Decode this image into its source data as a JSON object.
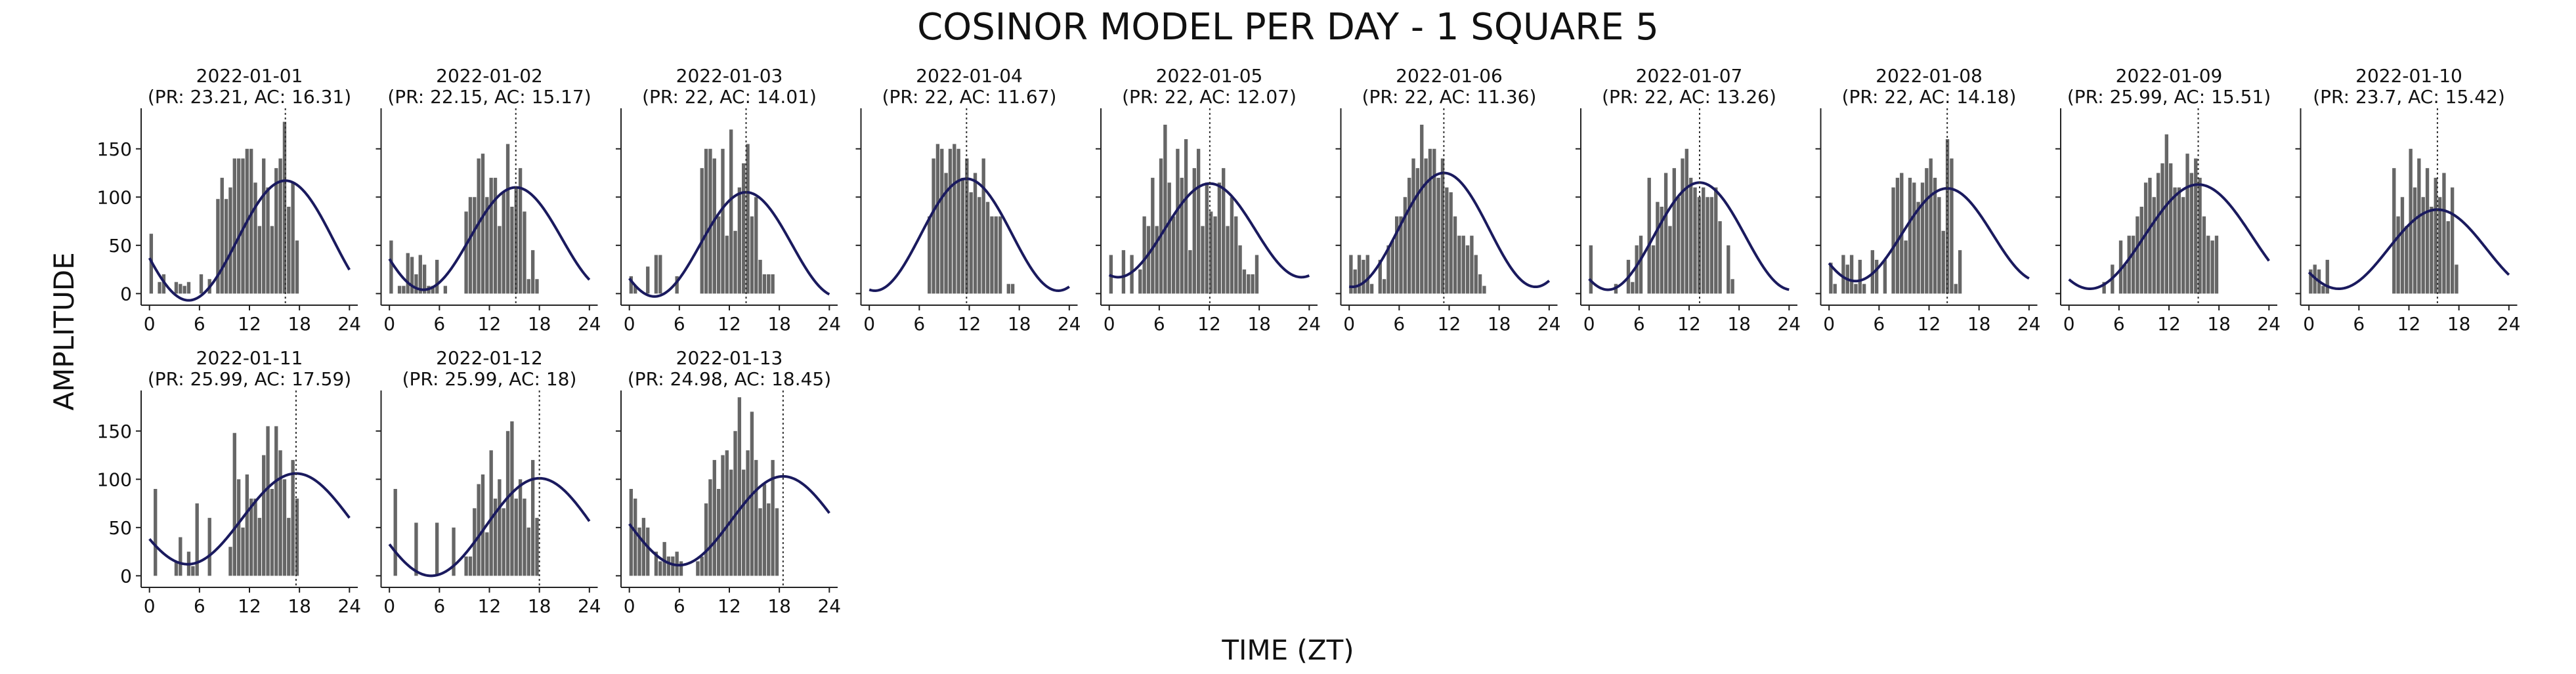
{
  "title": "COSINOR MODEL PER DAY - 1 SQUARE 5",
  "xlabel": "TIME (ZT)",
  "ylabel": "AMPLITUDE",
  "colors": {
    "bar": "#666666",
    "curve": "#1a1a5e",
    "acrophase": "#333333"
  },
  "chart_data": {
    "type": "bar",
    "x_ticks": [
      0,
      6,
      12,
      18,
      24
    ],
    "y_ticks": [
      0,
      50,
      100,
      150
    ],
    "xlim": [
      -1,
      25
    ],
    "ylim": [
      -12,
      192
    ],
    "hist_bin_width_h": 0.5,
    "x_ticks_shown_on_rows": [
      1,
      2
    ],
    "y_ticks_shown_on_column": 1,
    "panels": [
      {
        "date": "2022-01-01",
        "period": 23.21,
        "acrophase": 16.31,
        "curve_max": 117,
        "curve_min": -7,
        "values": [
          62,
          0,
          12,
          20,
          0,
          0,
          12,
          10,
          8,
          12,
          0,
          0,
          20,
          0,
          15,
          0,
          98,
          120,
          98,
          110,
          140,
          140,
          140,
          150,
          150,
          115,
          70,
          140,
          110,
          70,
          130,
          140,
          178,
          90,
          115,
          55,
          0,
          0,
          0,
          0,
          0,
          0,
          0,
          0,
          0,
          0,
          0,
          0
        ]
      },
      {
        "date": "2022-01-02",
        "period": 22.15,
        "acrophase": 15.17,
        "curve_max": 110,
        "curve_min": 4,
        "values": [
          55,
          0,
          8,
          8,
          42,
          38,
          20,
          40,
          30,
          8,
          8,
          35,
          0,
          8,
          0,
          0,
          0,
          0,
          85,
          100,
          100,
          140,
          145,
          100,
          120,
          120,
          70,
          105,
          155,
          90,
          110,
          130,
          85,
          15,
          45,
          15,
          0,
          0,
          0,
          0,
          0,
          0,
          0,
          0,
          0,
          0,
          0,
          0
        ]
      },
      {
        "date": "2022-01-03",
        "period": 22.0,
        "acrophase": 14.01,
        "curve_max": 105,
        "curve_min": -3,
        "values": [
          18,
          8,
          0,
          0,
          28,
          0,
          40,
          40,
          0,
          0,
          0,
          18,
          0,
          0,
          0,
          0,
          0,
          130,
          150,
          150,
          140,
          80,
          150,
          60,
          170,
          65,
          110,
          135,
          155,
          80,
          100,
          35,
          20,
          20,
          20,
          0,
          0,
          0,
          0,
          0,
          0,
          0,
          0,
          0,
          0,
          0,
          0,
          0
        ]
      },
      {
        "date": "2022-01-04",
        "period": 22.0,
        "acrophase": 11.67,
        "curve_max": 119,
        "curve_min": 3,
        "values": [
          0,
          0,
          0,
          0,
          0,
          0,
          0,
          0,
          0,
          0,
          0,
          0,
          0,
          0,
          80,
          140,
          155,
          150,
          125,
          150,
          155,
          150,
          120,
          140,
          105,
          125,
          100,
          140,
          95,
          80,
          80,
          80,
          0,
          10,
          10,
          0,
          0,
          0,
          0,
          0,
          0,
          0,
          0,
          0,
          0,
          0,
          0,
          0
        ]
      },
      {
        "date": "2022-01-05",
        "period": 22.0,
        "acrophase": 12.07,
        "curve_max": 114,
        "curve_min": 17,
        "values": [
          40,
          0,
          0,
          45,
          0,
          40,
          0,
          25,
          80,
          70,
          120,
          70,
          140,
          175,
          115,
          80,
          150,
          120,
          160,
          45,
          130,
          150,
          70,
          115,
          85,
          80,
          115,
          130,
          70,
          100,
          80,
          50,
          25,
          20,
          20,
          40,
          0,
          0,
          0,
          0,
          0,
          0,
          0,
          0,
          0,
          0,
          0,
          0
        ]
      },
      {
        "date": "2022-01-06",
        "period": 22.0,
        "acrophase": 11.36,
        "curve_max": 125,
        "curve_min": 7,
        "values": [
          40,
          25,
          40,
          35,
          40,
          10,
          0,
          35,
          15,
          50,
          55,
          80,
          80,
          100,
          120,
          140,
          130,
          175,
          140,
          150,
          150,
          120,
          140,
          110,
          105,
          80,
          60,
          60,
          50,
          60,
          40,
          20,
          8,
          0,
          0,
          0,
          0,
          0,
          0,
          0,
          0,
          0,
          0,
          0,
          0,
          0,
          0,
          0
        ]
      },
      {
        "date": "2022-01-07",
        "period": 22.0,
        "acrophase": 13.26,
        "curve_max": 115,
        "curve_min": 4,
        "values": [
          50,
          0,
          0,
          0,
          0,
          0,
          10,
          0,
          0,
          35,
          12,
          50,
          60,
          0,
          120,
          50,
          95,
          90,
          125,
          70,
          130,
          100,
          140,
          150,
          120,
          110,
          100,
          110,
          100,
          100,
          110,
          75,
          0,
          50,
          15,
          0,
          0,
          0,
          0,
          0,
          0,
          0,
          0,
          0,
          0,
          0,
          0,
          0
        ]
      },
      {
        "date": "2022-01-08",
        "period": 22.0,
        "acrophase": 14.18,
        "curve_max": 109,
        "curve_min": 13,
        "values": [
          32,
          10,
          0,
          40,
          30,
          40,
          10,
          35,
          10,
          0,
          45,
          35,
          0,
          35,
          0,
          110,
          120,
          125,
          55,
          120,
          115,
          95,
          115,
          130,
          140,
          120,
          100,
          65,
          160,
          140,
          10,
          45,
          0,
          0,
          0,
          0,
          0,
          0,
          0,
          0,
          0,
          0,
          0,
          0,
          0,
          0,
          0,
          0
        ]
      },
      {
        "date": "2022-01-09",
        "period": 25.99,
        "acrophase": 15.51,
        "curve_max": 113,
        "curve_min": 5,
        "values": [
          0,
          0,
          0,
          0,
          0,
          0,
          0,
          0,
          12,
          0,
          30,
          0,
          55,
          30,
          60,
          60,
          80,
          90,
          115,
          120,
          100,
          125,
          135,
          165,
          135,
          110,
          110,
          100,
          145,
          125,
          140,
          120,
          80,
          60,
          55,
          60,
          0,
          0,
          0,
          0,
          0,
          0,
          0,
          0,
          0,
          0,
          0,
          0
        ]
      },
      {
        "date": "2022-01-10",
        "period": 23.7,
        "acrophase": 15.42,
        "curve_max": 87,
        "curve_min": 5,
        "values": [
          25,
          30,
          25,
          8,
          35,
          0,
          0,
          0,
          0,
          0,
          0,
          0,
          0,
          0,
          0,
          0,
          0,
          0,
          0,
          0,
          130,
          80,
          100,
          70,
          150,
          110,
          140,
          100,
          130,
          90,
          120,
          100,
          125,
          75,
          110,
          30,
          0,
          0,
          0,
          0,
          0,
          0,
          0,
          0,
          0,
          0,
          0,
          0
        ]
      },
      {
        "date": "2022-01-11",
        "period": 25.99,
        "acrophase": 17.59,
        "curve_max": 106,
        "curve_min": 12,
        "values": [
          0,
          90,
          0,
          0,
          0,
          0,
          15,
          40,
          0,
          25,
          10,
          75,
          0,
          0,
          60,
          0,
          0,
          0,
          0,
          30,
          148,
          100,
          50,
          105,
          80,
          80,
          60,
          125,
          155,
          90,
          155,
          130,
          100,
          60,
          120,
          80,
          0,
          0,
          0,
          0,
          0,
          0,
          0,
          0,
          0,
          0,
          0,
          0
        ]
      },
      {
        "date": "2022-01-12",
        "period": 25.99,
        "acrophase": 18.0,
        "curve_max": 101,
        "curve_min": 0,
        "values": [
          0,
          90,
          0,
          0,
          0,
          0,
          55,
          0,
          0,
          0,
          0,
          55,
          0,
          0,
          0,
          50,
          0,
          0,
          20,
          20,
          70,
          95,
          105,
          45,
          130,
          80,
          100,
          70,
          150,
          160,
          80,
          100,
          80,
          50,
          120,
          60,
          0,
          0,
          0,
          0,
          0,
          0,
          0,
          0,
          0,
          0,
          0,
          0
        ]
      },
      {
        "date": "2022-01-13",
        "period": 24.98,
        "acrophase": 18.45,
        "curve_max": 103,
        "curve_min": 11,
        "values": [
          90,
          80,
          50,
          60,
          50,
          0,
          25,
          15,
          35,
          20,
          20,
          25,
          15,
          0,
          0,
          0,
          15,
          20,
          75,
          100,
          120,
          90,
          125,
          130,
          110,
          150,
          185,
          110,
          130,
          170,
          120,
          70,
          95,
          75,
          120,
          70,
          0,
          0,
          0,
          0,
          0,
          0,
          0,
          0,
          0,
          0,
          0,
          0
        ]
      }
    ]
  }
}
